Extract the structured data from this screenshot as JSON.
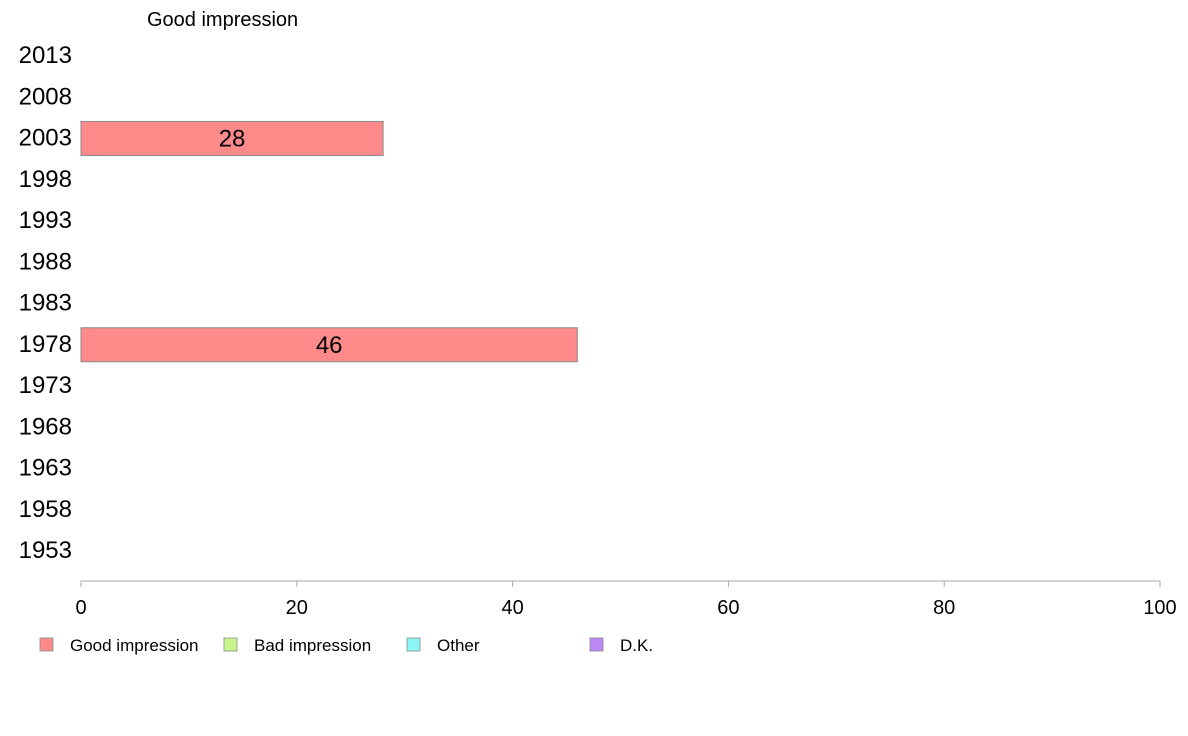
{
  "chart_data": {
    "type": "bar",
    "orientation": "horizontal",
    "title": "Good impression",
    "categories": [
      "2013",
      "2008",
      "2003",
      "1998",
      "1993",
      "1988",
      "1983",
      "1978",
      "1973",
      "1968",
      "1963",
      "1958",
      "1953"
    ],
    "series": [
      {
        "name": "Good impression",
        "color": "#ff8a8a",
        "values": [
          null,
          null,
          28,
          null,
          null,
          null,
          null,
          46,
          null,
          null,
          null,
          null,
          null
        ]
      }
    ],
    "xlim": [
      0,
      100
    ],
    "xticks": [
      0,
      20,
      40,
      60,
      80,
      100
    ],
    "grid": false,
    "legend": {
      "placement": "bottom",
      "items": [
        {
          "label": "Good impression",
          "color": "#ff8a8a"
        },
        {
          "label": "Bad impression",
          "color": "#c8f58a"
        },
        {
          "label": "Other",
          "color": "#8af5f5"
        },
        {
          "label": "D.K.",
          "color": "#bb88f5"
        }
      ]
    }
  }
}
